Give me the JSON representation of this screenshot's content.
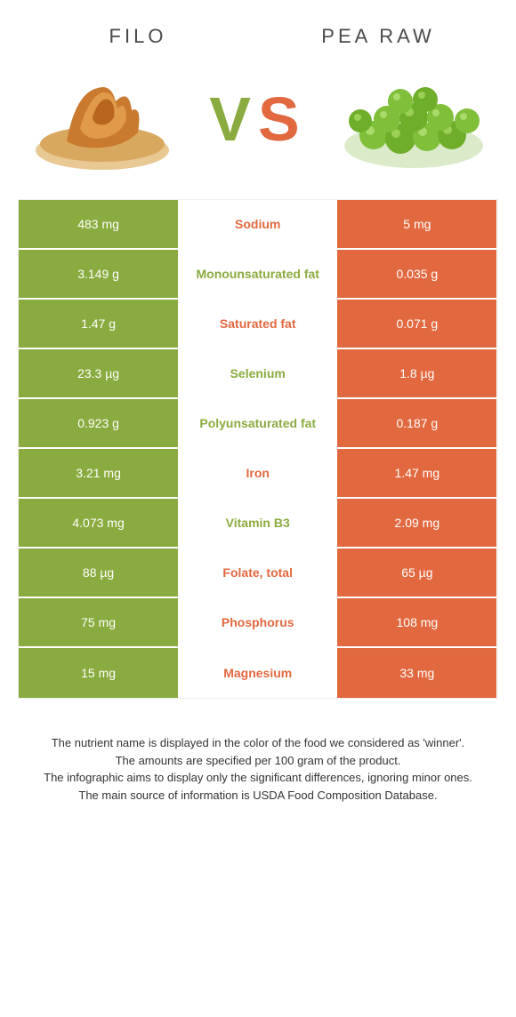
{
  "colors": {
    "green": "#8aab3f",
    "orange": "#e2683f",
    "background": "#ffffff",
    "text": "#333333",
    "cell_text": "#ffffff"
  },
  "typography": {
    "title_fontsize": 22,
    "title_letterspacing": 4,
    "vs_fontsize": 70,
    "cell_fontsize": 14,
    "footer_fontsize": 13
  },
  "header": {
    "left_title": "Filo",
    "right_title": "Pea raw",
    "vs_v": "V",
    "vs_s": "S"
  },
  "table": {
    "rows": [
      {
        "left": "483 mg",
        "label": "Sodium",
        "right": "5 mg",
        "winner": "orange"
      },
      {
        "left": "3.149 g",
        "label": "Monounsaturated fat",
        "right": "0.035 g",
        "winner": "green"
      },
      {
        "left": "1.47 g",
        "label": "Saturated fat",
        "right": "0.071 g",
        "winner": "orange"
      },
      {
        "left": "23.3 µg",
        "label": "Selenium",
        "right": "1.8 µg",
        "winner": "green"
      },
      {
        "left": "0.923 g",
        "label": "Polyunsaturated fat",
        "right": "0.187 g",
        "winner": "green"
      },
      {
        "left": "3.21 mg",
        "label": "Iron",
        "right": "1.47 mg",
        "winner": "orange"
      },
      {
        "left": "4.073 mg",
        "label": "Vitamin B3",
        "right": "2.09 mg",
        "winner": "green"
      },
      {
        "left": "88 µg",
        "label": "Folate, total",
        "right": "65 µg",
        "winner": "orange"
      },
      {
        "left": "75 mg",
        "label": "Phosphorus",
        "right": "108 mg",
        "winner": "orange"
      },
      {
        "left": "15 mg",
        "label": "Magnesium",
        "right": "33 mg",
        "winner": "orange"
      }
    ]
  },
  "footer": {
    "line1": "The nutrient name is displayed in the color of the food we considered as 'winner'.",
    "line2": "The amounts are specified per 100 gram of the product.",
    "line3": "The infographic aims to display only the significant differences, ignoring minor ones.",
    "line4": "The main source of information is USDA Food Composition Database."
  }
}
